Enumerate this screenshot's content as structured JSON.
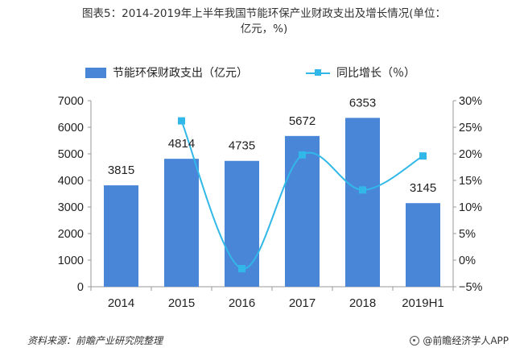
{
  "title": {
    "line1": "图表5：2014-2019年上半年我国节能环保产业财政支出及增长情况(单位：",
    "line2": "亿元，%)"
  },
  "legend": {
    "bar_label": "节能环保财政支出（亿元）",
    "line_label": "同比增长（％）"
  },
  "source": "资料来源：前瞻产业研究院整理",
  "brand": "@前瞻经济学人APP",
  "colors": {
    "bar": "#4a86d8",
    "line": "#31b8e8",
    "axis": "#999999"
  },
  "chart_data": {
    "type": "bar",
    "categories": [
      "2014",
      "2015",
      "2016",
      "2017",
      "2018",
      "2019H1"
    ],
    "series": [
      {
        "name": "节能环保财政支出（亿元）",
        "type": "bar",
        "axis": "left",
        "values": [
          3815,
          4814,
          4735,
          5672,
          6353,
          3145
        ],
        "labels": [
          "3815",
          "4814",
          "4735",
          "5672",
          "6353",
          "3145"
        ]
      },
      {
        "name": "同比增长（％）",
        "type": "line",
        "axis": "right",
        "smooth": true,
        "values": [
          null,
          26.2,
          -1.6,
          19.8,
          13.2,
          19.6
        ]
      }
    ],
    "y_left": {
      "min": 0,
      "max": 7000,
      "ticks": [
        0,
        1000,
        2000,
        3000,
        4000,
        5000,
        6000,
        7000
      ]
    },
    "y_right": {
      "min": -5,
      "max": 30,
      "ticks": [
        -5,
        0,
        5,
        10,
        15,
        20,
        25,
        30
      ],
      "tick_labels": [
        "−5%",
        "0%",
        "5%",
        "10%",
        "15%",
        "20%",
        "25%",
        "30%"
      ]
    },
    "grid": false,
    "legend_position": "top"
  }
}
